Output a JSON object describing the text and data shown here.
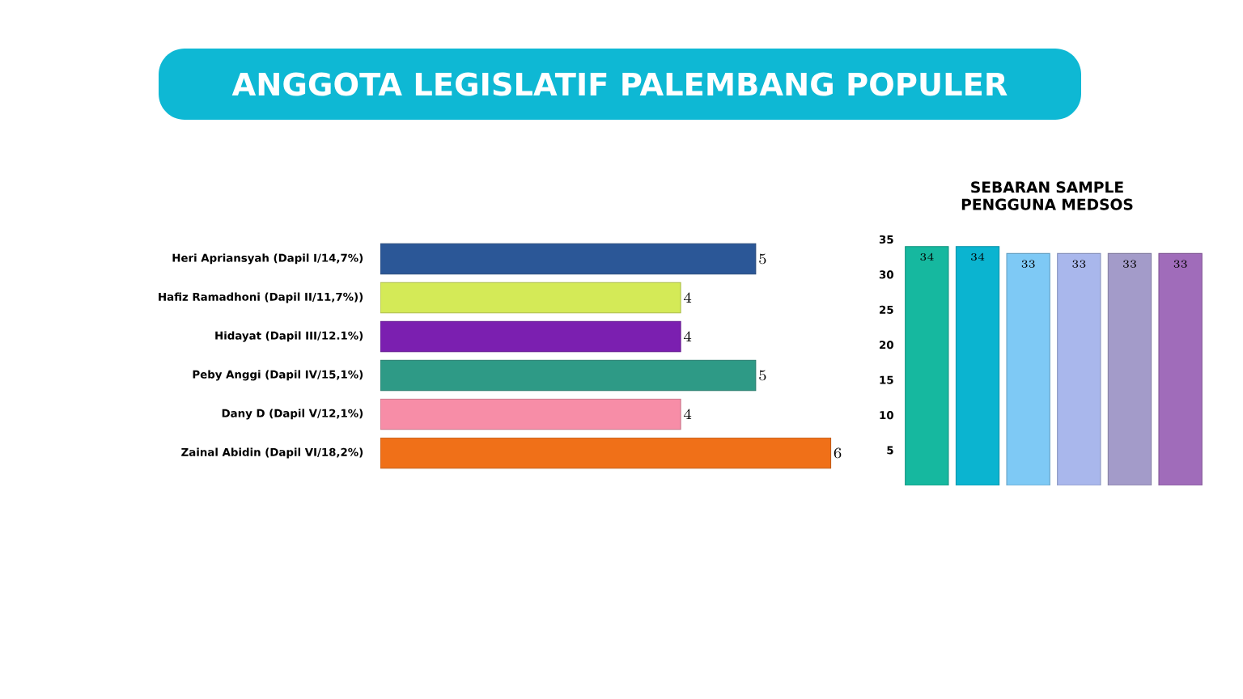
{
  "chart_data": [
    {
      "type": "bar",
      "orientation": "horizontal",
      "title": "ANGGOTA LEGISLATIF PALEMBANG POPULER",
      "categories": [
        "Heri Apriansyah (Dapil I/14,7%)",
        "Hafiz Ramadhoni (Dapil II/11,7%))",
        "Hidayat (Dapil III/12.1%)",
        "Peby Anggi (Dapil IV/15,1%)",
        "Dany D (Dapil V/12,1%)",
        "Zainal Abidin (Dapil VI/18,2%)"
      ],
      "values": [
        5,
        4,
        4,
        5,
        4,
        6
      ],
      "colors": [
        "#2b5797",
        "#d4ea57",
        "#7b1fb0",
        "#2e9a86",
        "#f78da7",
        "#f07018"
      ],
      "data_labels": true
    },
    {
      "type": "bar",
      "title": "SEBARAN SAMPLE PENGGUNA MEDSOS",
      "categories": [
        null,
        null,
        null,
        null,
        null,
        null
      ],
      "values": [
        34,
        34,
        33,
        33,
        33,
        33
      ],
      "colors": [
        "#16b89f",
        "#0bb4d0",
        "#7ec9f5",
        "#a9b7ec",
        "#a39bc9",
        "#a06cba"
      ],
      "ylim": [
        0,
        35
      ],
      "yticks": [
        5,
        10,
        15,
        20,
        25,
        30,
        35
      ],
      "data_labels": true
    }
  ]
}
